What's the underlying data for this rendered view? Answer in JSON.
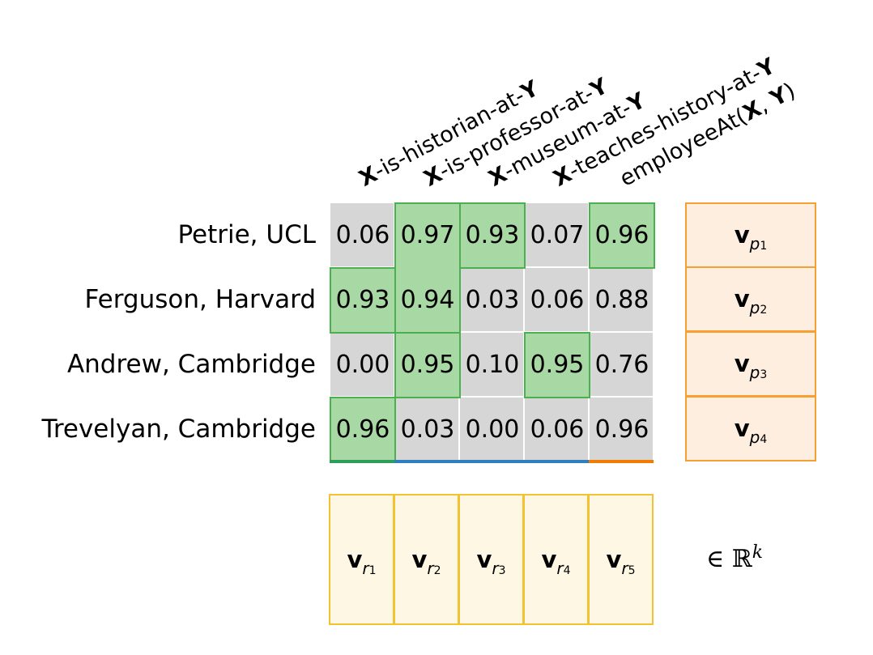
{
  "columns": [
    {
      "x": "X",
      "rest": "-is-historian-at-",
      "y": "Y",
      "close": ""
    },
    {
      "x": "X",
      "rest": "-is-professor-at-",
      "y": "Y",
      "close": ""
    },
    {
      "x": "X",
      "rest": "-museum-at-",
      "y": "Y",
      "close": ""
    },
    {
      "x": "X",
      "rest": "-teaches-history-at-",
      "y": "Y",
      "close": ""
    },
    {
      "pre": "employeeAt(",
      "x": "X",
      "mid": ", ",
      "y": "Y",
      "close": ")"
    }
  ],
  "rows": [
    {
      "label": "Petrie, UCL",
      "values": [
        "0.06",
        "0.97",
        "0.93",
        "0.07",
        "0.96"
      ]
    },
    {
      "label": "Ferguson, Harvard",
      "values": [
        "0.93",
        "0.94",
        "0.03",
        "0.06",
        "0.88"
      ]
    },
    {
      "label": "Andrew, Cambridge",
      "values": [
        "0.00",
        "0.95",
        "0.10",
        "0.95",
        "0.76"
      ]
    },
    {
      "label": "Trevelyan, Cambridge",
      "values": [
        "0.96",
        "0.03",
        "0.00",
        "0.06",
        "0.96"
      ]
    }
  ],
  "pair_vectors": [
    {
      "v": "v",
      "sub": "p",
      "idx": "1"
    },
    {
      "v": "v",
      "sub": "p",
      "idx": "2"
    },
    {
      "v": "v",
      "sub": "p",
      "idx": "3"
    },
    {
      "v": "v",
      "sub": "p",
      "idx": "4"
    }
  ],
  "relation_vectors": [
    {
      "v": "v",
      "sub": "r",
      "idx": "1"
    },
    {
      "v": "v",
      "sub": "r",
      "idx": "2"
    },
    {
      "v": "v",
      "sub": "r",
      "idx": "3"
    },
    {
      "v": "v",
      "sub": "r",
      "idx": "4"
    },
    {
      "v": "v",
      "sub": "r",
      "idx": "5"
    }
  ],
  "space_label": {
    "symbol": "∈ ℝ",
    "power": "k"
  },
  "colors": {
    "cell_gray": "#d6d6d6",
    "highlight_fill": "#a8d8a3",
    "highlight_border": "#4caf50",
    "pair_fill": "#fdeee0",
    "pair_border": "#f5a030",
    "relation_fill": "#fdf7e3",
    "relation_border": "#f2c230",
    "underline_green": "#2e9e5a",
    "underline_blue": "#2f7fc1",
    "underline_orange": "#f07d00"
  }
}
